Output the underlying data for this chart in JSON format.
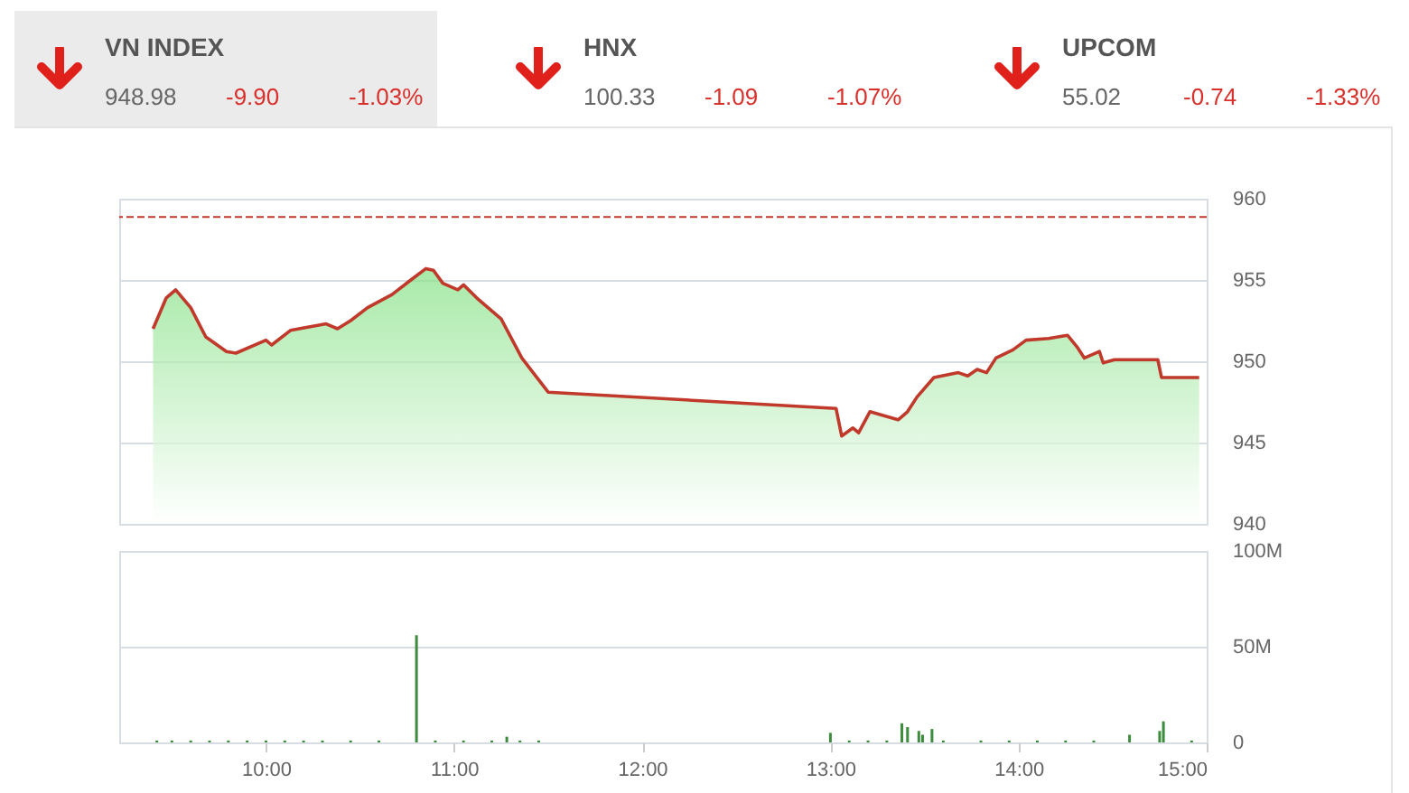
{
  "chart_data": [
    {
      "type": "other",
      "title": "VN INDEX",
      "annotations": [
        "948.98",
        "-9.90",
        "-1.03%"
      ]
    },
    {
      "type": "other",
      "title": "HNX",
      "annotations": [
        "100.33",
        "-1.09",
        "-1.07%"
      ]
    },
    {
      "type": "other",
      "title": "UPCOM",
      "annotations": [
        "55.02",
        "-0.74",
        "-1.33%"
      ]
    },
    {
      "type": "area",
      "x": [
        9.4,
        9.47,
        9.52,
        9.6,
        9.68,
        9.79,
        9.84,
        10.0,
        10.03,
        10.13,
        10.32,
        10.38,
        10.45,
        10.54,
        10.67,
        10.77,
        10.85,
        10.89,
        10.94,
        11.02,
        11.05,
        11.12,
        11.25,
        11.36,
        11.42,
        11.5,
        13.03,
        13.06,
        13.12,
        13.15,
        13.21,
        13.36,
        13.41,
        13.46,
        13.55,
        13.68,
        13.73,
        13.78,
        13.83,
        13.88,
        13.97,
        14.04,
        14.16,
        14.26,
        14.31,
        14.35,
        14.43,
        14.45,
        14.51,
        14.74,
        14.76,
        14.96
      ],
      "series": [
        {
          "color": "#c0392b",
          "values": [
            952.0,
            953.9,
            954.4,
            953.3,
            951.5,
            950.6,
            950.5,
            951.3,
            951.0,
            951.9,
            952.3,
            952.0,
            952.5,
            953.3,
            954.1,
            955.0,
            955.7,
            955.6,
            954.8,
            954.4,
            954.7,
            953.9,
            952.6,
            950.2,
            949.3,
            948.1,
            947.1,
            945.4,
            945.9,
            945.6,
            946.9,
            946.4,
            946.9,
            947.8,
            949.0,
            949.3,
            949.1,
            949.5,
            949.3,
            950.2,
            950.7,
            951.3,
            951.4,
            951.6,
            950.9,
            950.2,
            950.6,
            949.9,
            950.1,
            950.1,
            949.0,
            949.0
          ]
        }
      ],
      "xlim": [
        9.22,
        15.0
      ],
      "ylim": [
        940,
        960
      ],
      "yticks": [
        940,
        945,
        950,
        955,
        960
      ],
      "grid": "y",
      "tick_labels": "y",
      "ref_lines": [
        {
          "axis": "y",
          "value": 958.88,
          "color": "#c0392b",
          "line_style": "dashed"
        }
      ]
    },
    {
      "type": "bar",
      "x": [
        9.42,
        9.5,
        9.6,
        9.7,
        9.8,
        9.9,
        10.0,
        10.1,
        10.2,
        10.3,
        10.45,
        10.6,
        10.8,
        10.9,
        11.05,
        11.2,
        11.28,
        11.35,
        11.45,
        13.0,
        13.1,
        13.2,
        13.3,
        13.38,
        13.41,
        13.47,
        13.49,
        13.54,
        13.6,
        13.8,
        13.95,
        14.1,
        14.25,
        14.4,
        14.59,
        14.75,
        14.77,
        14.92
      ],
      "series": [
        {
          "color": "#3d8b3d",
          "values": [
            1,
            1,
            1,
            1,
            1,
            1,
            1,
            1,
            1,
            1,
            1,
            1,
            56,
            1,
            1,
            1,
            3,
            1,
            1,
            5,
            1,
            1,
            1,
            10,
            8,
            6,
            4,
            7,
            1,
            1,
            1,
            1,
            1,
            1,
            4,
            6,
            11,
            1
          ]
        }
      ],
      "xlim": [
        9.22,
        15.0
      ],
      "xticks": [
        {
          "value": 10,
          "label": "10:00"
        },
        {
          "value": 11,
          "label": "11:00"
        },
        {
          "value": 12,
          "label": "12:00"
        },
        {
          "value": 13,
          "label": "13:00"
        },
        {
          "value": 14,
          "label": "14:00"
        },
        {
          "value": 15,
          "label": "15:00"
        }
      ],
      "ylim": [
        0,
        100
      ],
      "yticks": [
        0,
        {
          "value": 50,
          "label": "50M"
        },
        {
          "value": 100,
          "label": "100M"
        }
      ],
      "grid": "y"
    }
  ]
}
